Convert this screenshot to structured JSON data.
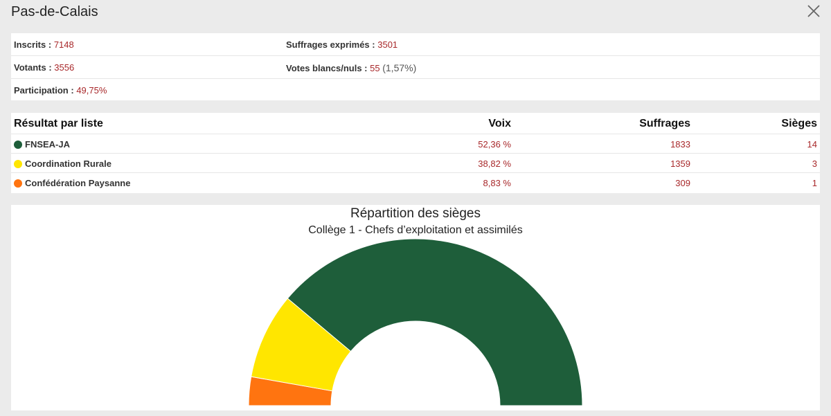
{
  "header": {
    "title": "Pas-de-Calais",
    "close_icon": "close-icon"
  },
  "stats": {
    "inscrits_label": "Inscrits :",
    "inscrits_value": "7148",
    "suffrages_label": "Suffrages exprimés :",
    "suffrages_value": "3501",
    "votants_label": "Votants :",
    "votants_value": "3556",
    "blancs_label": "Votes blancs/nuls :",
    "blancs_value": "55",
    "blancs_pct": "(1,57%)",
    "participation_label": "Participation :",
    "participation_value": "49,75%"
  },
  "results": {
    "headers": {
      "name": "Résultat par liste",
      "voix": "Voix",
      "suffrages": "Suffrages",
      "sieges": "Sièges"
    },
    "rows": [
      {
        "name": "FNSEA-JA",
        "voix": "52,36 %",
        "suffrages": "1833",
        "sieges": "14",
        "color": "#1e5e3a"
      },
      {
        "name": "Coordination Rurale",
        "voix": "38,82 %",
        "suffrages": "1359",
        "sieges": "3",
        "color": "#ffe600"
      },
      {
        "name": "Confédération Paysanne",
        "voix": "8,83 %",
        "suffrages": "309",
        "sieges": "1",
        "color": "#ff7410"
      }
    ]
  },
  "chart_data": {
    "type": "pie",
    "title": "Répartition des sièges",
    "subtitle": "Collège 1 - Chefs d’exploitation et assimilés",
    "categories": [
      "Confédération Paysanne",
      "Coordination Rurale",
      "FNSEA-JA"
    ],
    "values": [
      1,
      3,
      14
    ],
    "colors": [
      "#ff7410",
      "#ffe600",
      "#1e5e3a"
    ],
    "variant": "semicircle"
  }
}
